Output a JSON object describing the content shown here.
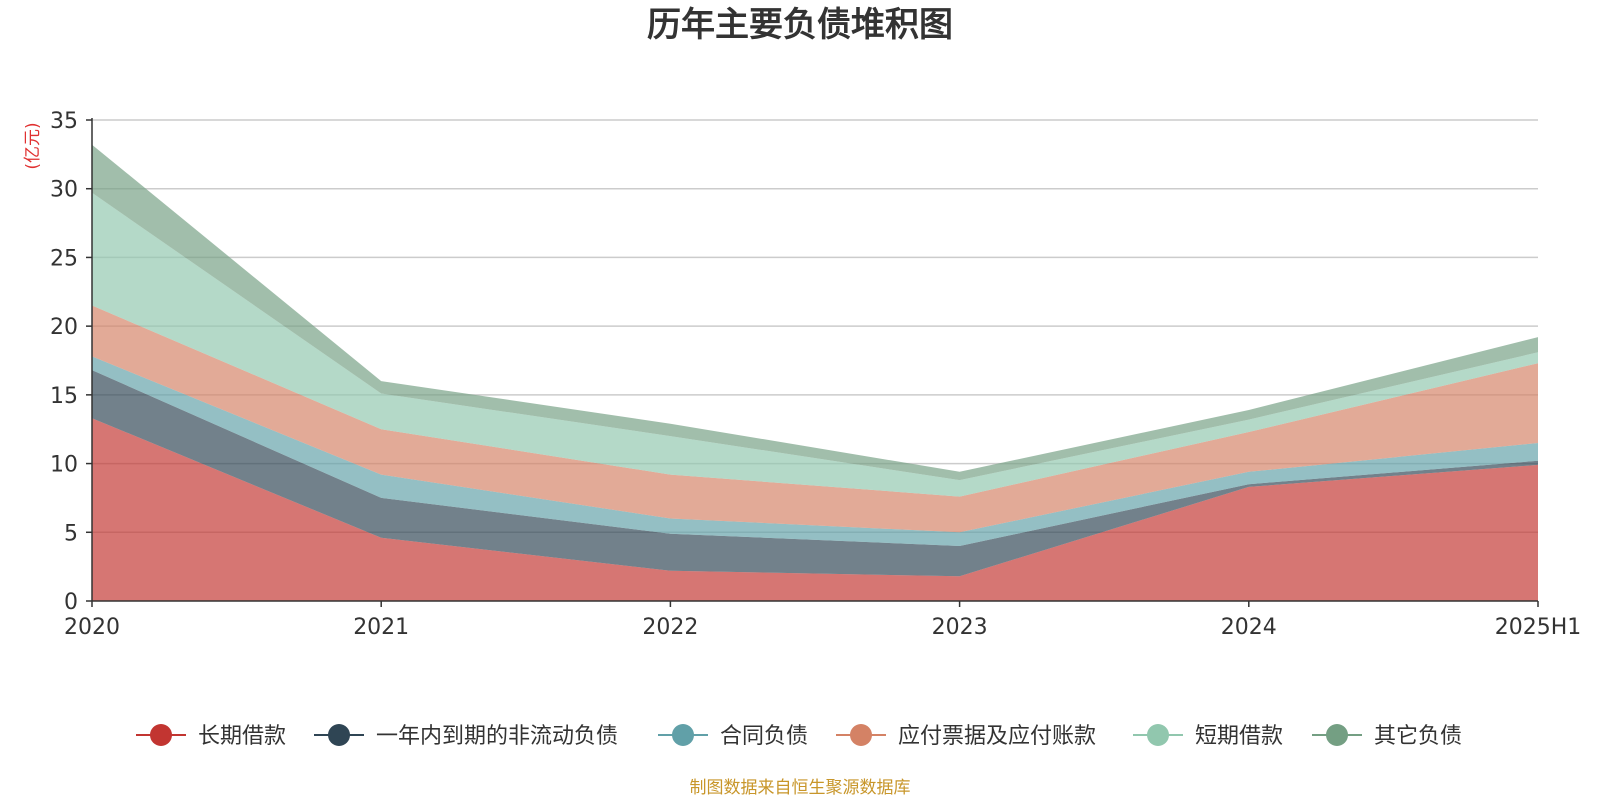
{
  "chart_data": {
    "type": "area",
    "stacked": true,
    "title": "历年主要负债堆积图",
    "y_unit_label": "(亿元)",
    "source_note": "制图数据来自恒生聚源数据库",
    "categories": [
      "2020",
      "2021",
      "2022",
      "2023",
      "2024",
      "2025H1"
    ],
    "ylim": [
      0,
      35
    ],
    "yticks": [
      0,
      5,
      10,
      15,
      20,
      25,
      30,
      35
    ],
    "grid": true,
    "legend_position": "bottom",
    "series": [
      {
        "name": "长期借款",
        "color": "#c23531",
        "values": [
          13.3,
          4.6,
          2.2,
          1.8,
          8.3,
          9.9
        ]
      },
      {
        "name": "一年内到期的非流动负债",
        "color": "#2f4554",
        "values": [
          3.5,
          2.9,
          2.7,
          2.2,
          0.2,
          0.3
        ]
      },
      {
        "name": "合同负债",
        "color": "#61a0a8",
        "values": [
          1.0,
          1.7,
          1.1,
          1.0,
          0.9,
          1.3
        ]
      },
      {
        "name": "应付票据及应付账款",
        "color": "#d48265",
        "values": [
          3.7,
          3.3,
          3.2,
          2.6,
          2.9,
          5.8
        ]
      },
      {
        "name": "短期借款",
        "color": "#91c7ae",
        "values": [
          8.2,
          2.6,
          2.8,
          1.2,
          0.9,
          0.8
        ]
      },
      {
        "name": "其它负债",
        "color": "#749f83",
        "values": [
          3.5,
          0.9,
          0.9,
          0.6,
          0.7,
          1.1
        ]
      }
    ]
  }
}
